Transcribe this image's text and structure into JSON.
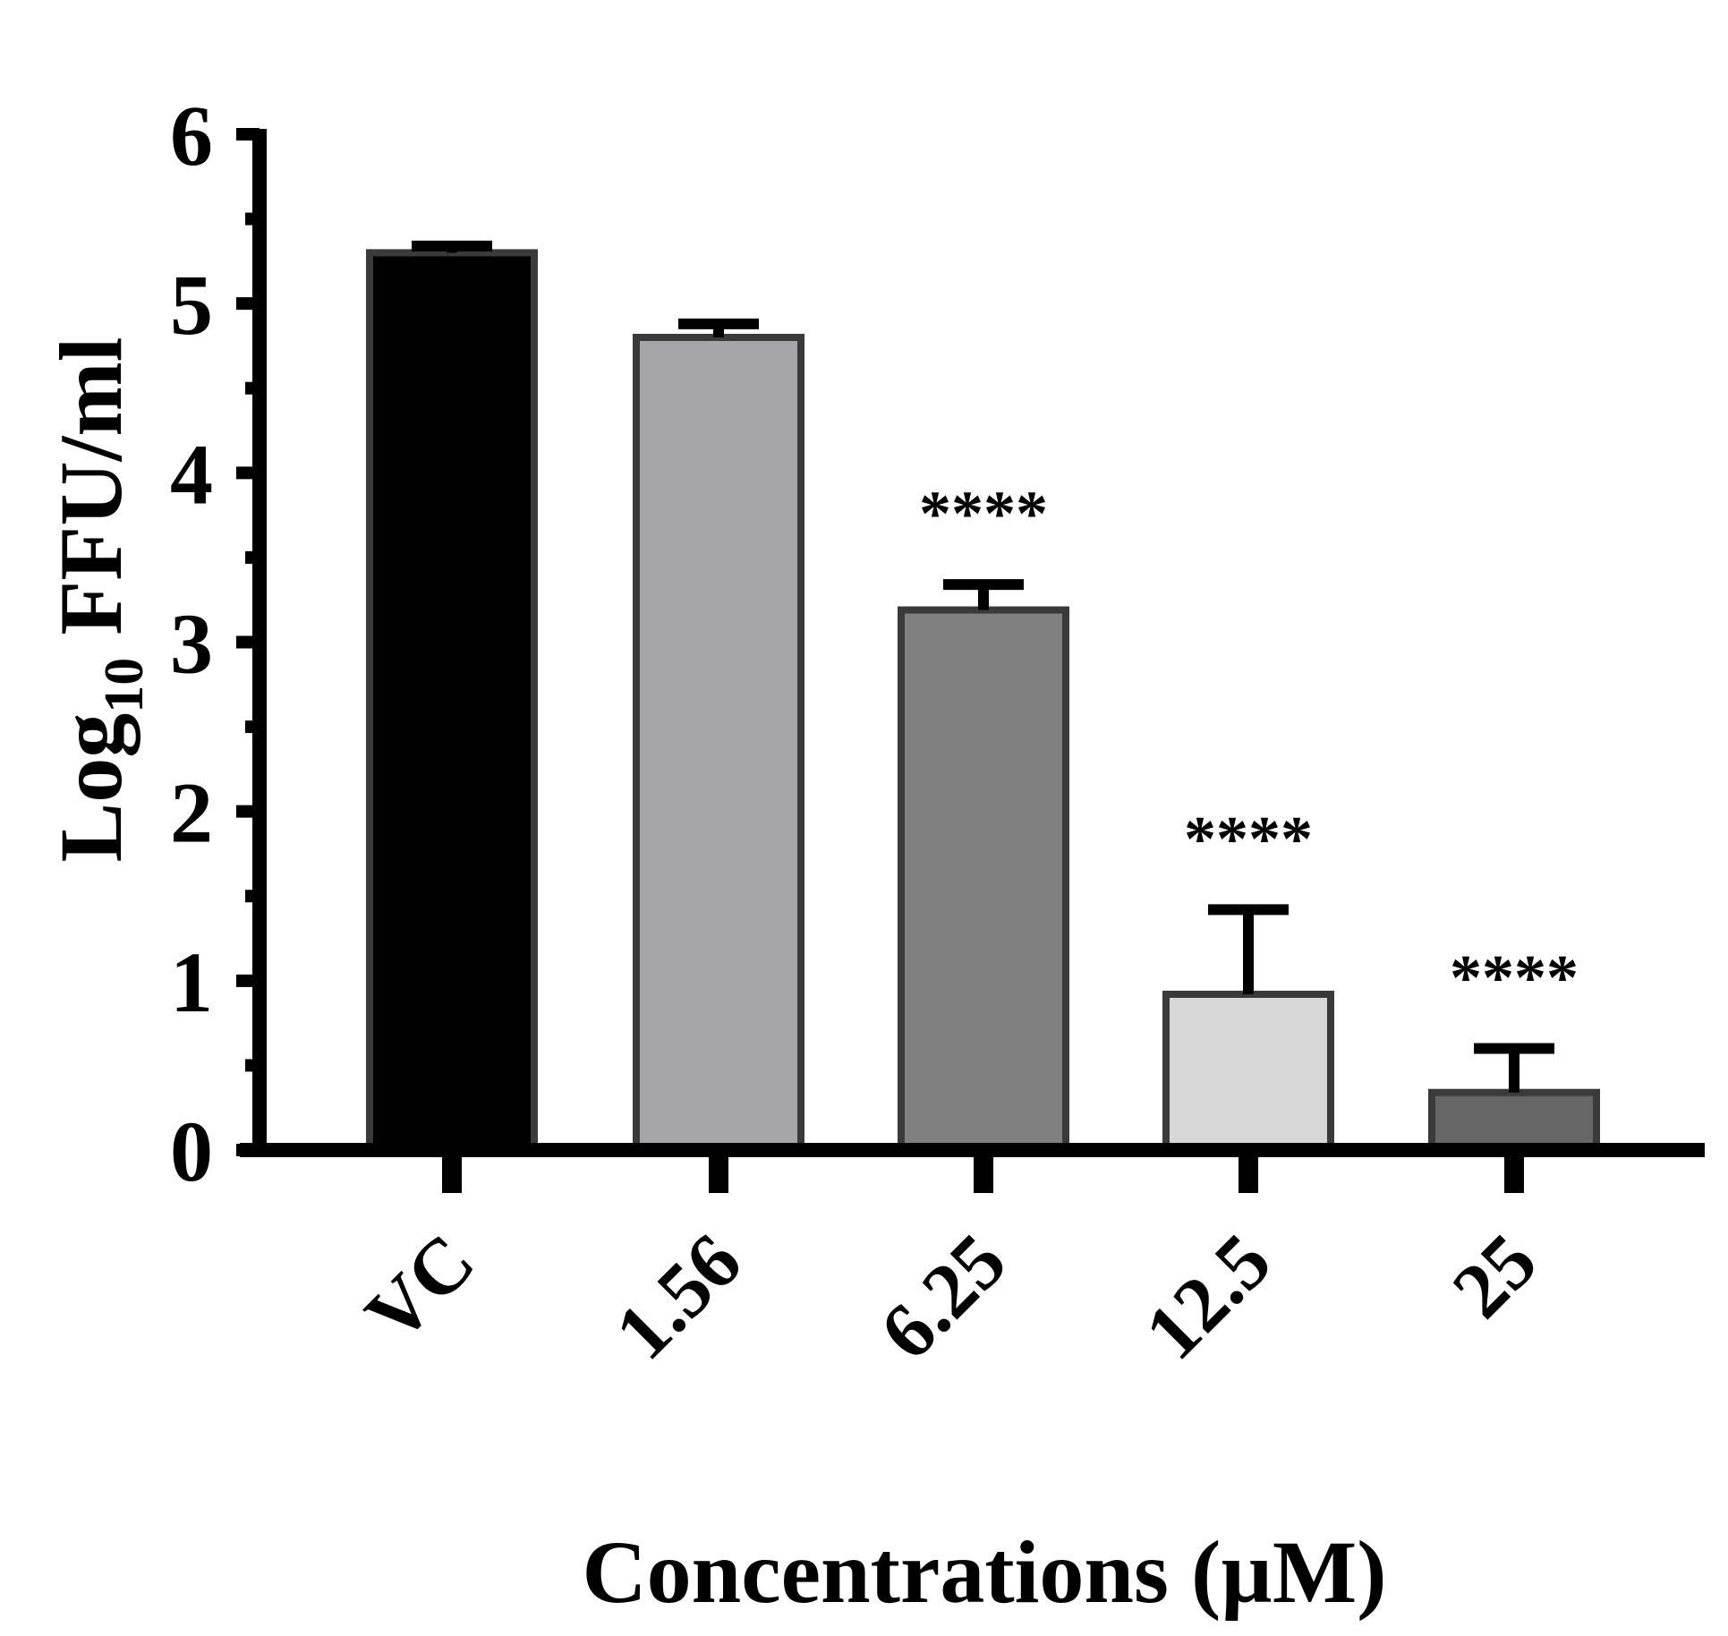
{
  "chart_data": {
    "type": "bar",
    "categories": [
      "VC",
      "1.56",
      "6.25",
      "12.5",
      "25"
    ],
    "values": [
      5.3,
      4.8,
      3.19,
      0.92,
      0.34
    ],
    "error": [
      0.04,
      0.08,
      0.15,
      0.5,
      0.26
    ],
    "significance": [
      "",
      "",
      "****",
      "****",
      "****"
    ],
    "bar_colors": [
      "#000000",
      "#a6a6aa",
      "#808080",
      "#d7d7d7",
      "#666666"
    ],
    "bar_edge_color": "#3a3a3a",
    "title": "",
    "xlabel": "Concentrations (µM)",
    "ylabel_main": "Log",
    "ylabel_sub": "10",
    "ylabel_rest": " FFU/ml",
    "ylim": [
      0,
      6
    ],
    "yticks": [
      "0",
      "1",
      "2",
      "3",
      "4",
      "5",
      "6"
    ],
    "grid": false
  }
}
